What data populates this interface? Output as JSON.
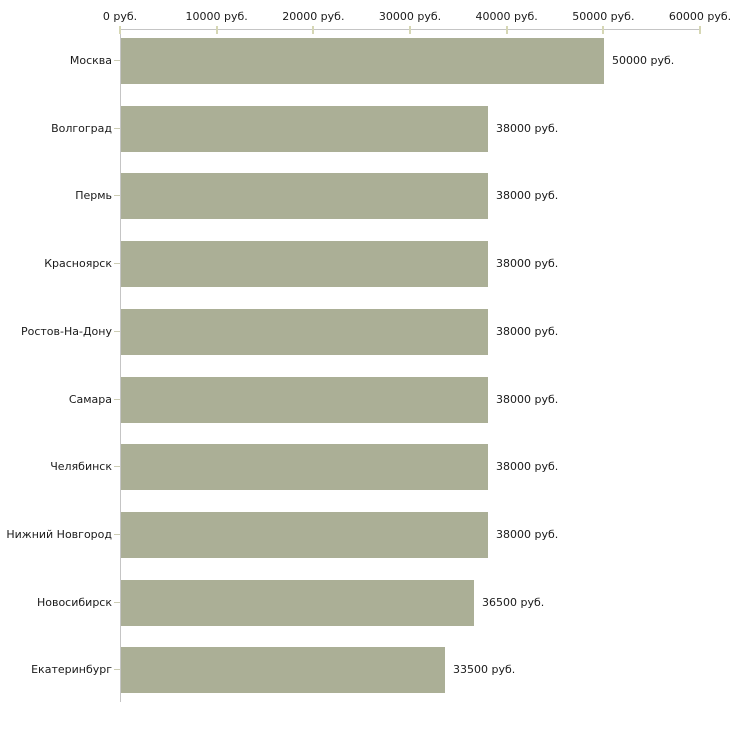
{
  "chart_data": {
    "type": "bar",
    "orientation": "horizontal",
    "title": "",
    "xlabel": "",
    "ylabel": "",
    "xlim": [
      0,
      60000
    ],
    "grid": false,
    "legend": null,
    "categories": [
      "Москва",
      "Волгоград",
      "Пермь",
      "Красноярск",
      "Ростов-На-Дону",
      "Самара",
      "Челябинск",
      "Нижний Новгород",
      "Новосибирск",
      "Екатеринбург"
    ],
    "values": [
      50000,
      38000,
      38000,
      38000,
      38000,
      38000,
      38000,
      38000,
      36500,
      33500
    ],
    "value_labels": [
      "50000 руб.",
      "38000 руб.",
      "38000 руб.",
      "38000 руб.",
      "38000 руб.",
      "38000 руб.",
      "38000 руб.",
      "38000 руб.",
      "36500 руб.",
      "33500 руб."
    ],
    "x_ticks": [
      {
        "value": 0,
        "label": "0 руб."
      },
      {
        "value": 10000,
        "label": "10000 руб."
      },
      {
        "value": 20000,
        "label": "20000 руб."
      },
      {
        "value": 30000,
        "label": "30000 руб."
      },
      {
        "value": 40000,
        "label": "40000 руб."
      },
      {
        "value": 50000,
        "label": "50000 руб."
      },
      {
        "value": 60000,
        "label": "60000 руб."
      }
    ],
    "colors": {
      "bar": "#abaf96",
      "axis_line": "#c5c5c5",
      "axis_tick": "#d6d7b4",
      "label_tick": "#cdcdb4",
      "text": "#1a1a1a",
      "background": "#ffffff"
    }
  }
}
